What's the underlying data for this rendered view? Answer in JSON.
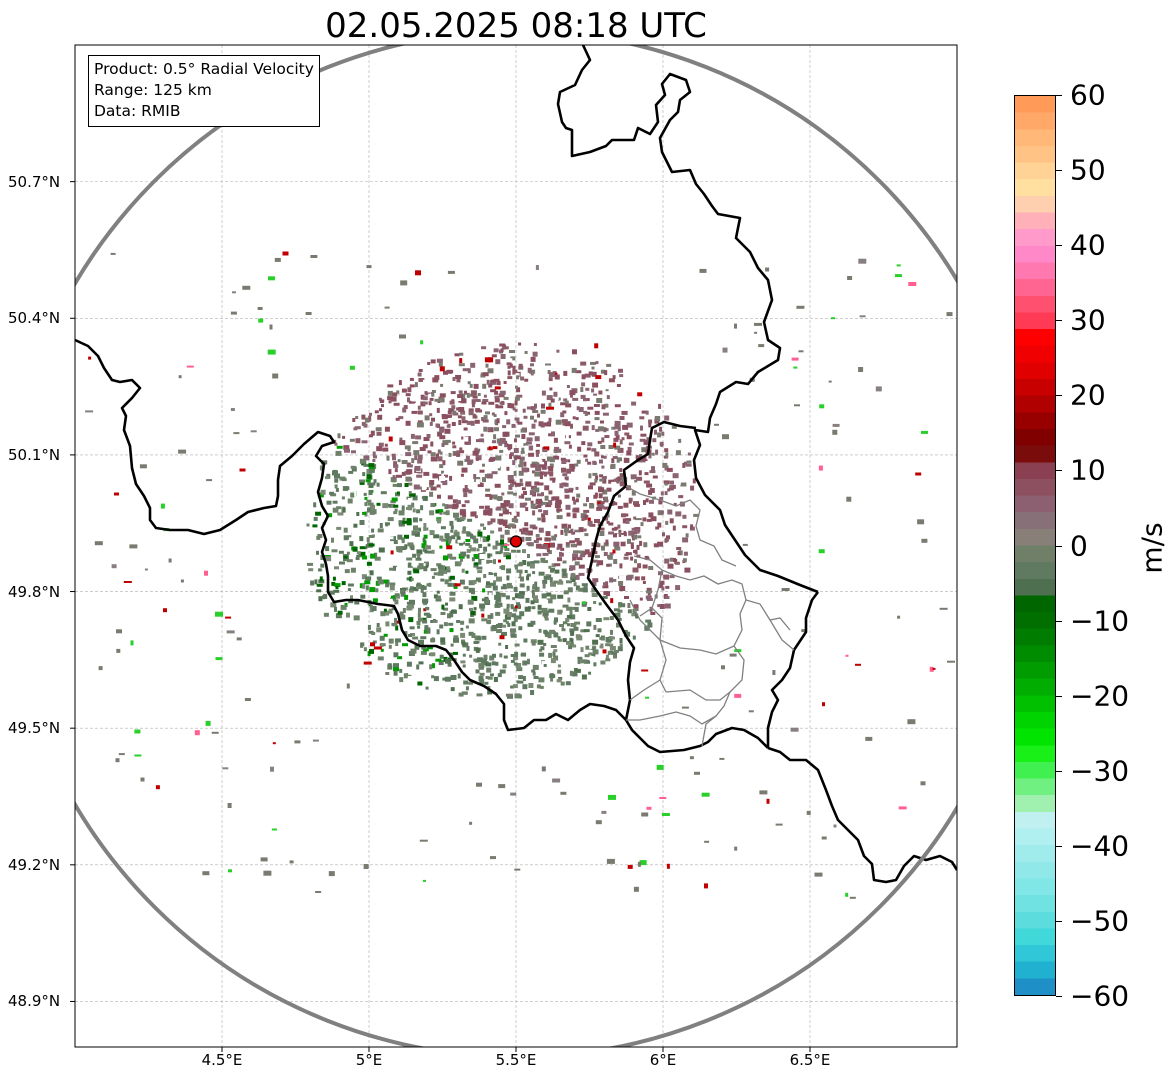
{
  "title": "02.05.2025 08:18 UTC",
  "info": {
    "product": "Product: 0.5° Radial Velocity",
    "range": "Range: 125 km",
    "source": "Data: RMIB"
  },
  "map": {
    "lon_range": [
      4.0,
      7.0
    ],
    "lat_range": [
      48.8,
      51.0
    ],
    "radar_site": {
      "lon": 5.5,
      "lat": 49.91
    },
    "lat_ticks": [
      {
        "value": 50.7,
        "label": "50.7°N"
      },
      {
        "value": 50.4,
        "label": "50.4°N"
      },
      {
        "value": 50.1,
        "label": "50.1°N"
      },
      {
        "value": 49.8,
        "label": "49.8°N"
      },
      {
        "value": 49.5,
        "label": "49.5°N"
      },
      {
        "value": 49.2,
        "label": "49.2°N"
      },
      {
        "value": 48.9,
        "label": "48.9°N"
      }
    ],
    "lon_ticks": [
      {
        "value": 4.5,
        "label": "4.5°E"
      },
      {
        "value": 5.0,
        "label": "5°E"
      },
      {
        "value": 5.5,
        "label": "5.5°E"
      },
      {
        "value": 6.0,
        "label": "6°E"
      },
      {
        "value": 6.5,
        "label": "6.5°E"
      }
    ],
    "gridlines": true
  },
  "colorbar": {
    "units": "m/s",
    "min": -60,
    "max": 60,
    "ticks": [
      {
        "value": 60,
        "label": "60"
      },
      {
        "value": 50,
        "label": "50"
      },
      {
        "value": 40,
        "label": "40"
      },
      {
        "value": 30,
        "label": "30"
      },
      {
        "value": 20,
        "label": "20"
      },
      {
        "value": 10,
        "label": "10"
      },
      {
        "value": 0,
        "label": "0"
      },
      {
        "value": -10,
        "label": "−10"
      },
      {
        "value": -20,
        "label": "−20"
      },
      {
        "value": -30,
        "label": "−30"
      },
      {
        "value": -40,
        "label": "−40"
      },
      {
        "value": -50,
        "label": "−50"
      },
      {
        "value": -60,
        "label": "−60"
      }
    ],
    "colors_top_to_bottom": [
      "#ff9a58",
      "#ffa868",
      "#ffb877",
      "#ffc485",
      "#ffd295",
      "#ffe0a0",
      "#ffd0b0",
      "#ffb0b8",
      "#ff9acb",
      "#ff88c8",
      "#ff78b0",
      "#ff6590",
      "#ff5070",
      "#ff3a55",
      "#ff0000",
      "#f00000",
      "#e00000",
      "#c80000",
      "#b00000",
      "#980000",
      "#800000",
      "#7a0c0c",
      "#8a4050",
      "#8c5060",
      "#8c6070",
      "#887078",
      "#888078",
      "#708068",
      "#5f7a60",
      "#4e7050",
      "#006600",
      "#006f00",
      "#007d00",
      "#008c00",
      "#009c00",
      "#00ad00",
      "#00c000",
      "#00d400",
      "#00e400",
      "#18f018",
      "#40f050",
      "#70f080",
      "#a0f0b0",
      "#c0f0f0",
      "#b0f0f0",
      "#a0ecec",
      "#90e8e8",
      "#80e6e6",
      "#70e2e2",
      "#5cdcdc",
      "#40d8d8",
      "#30c8d8",
      "#20b0d0",
      "#1f8fc8"
    ]
  }
}
